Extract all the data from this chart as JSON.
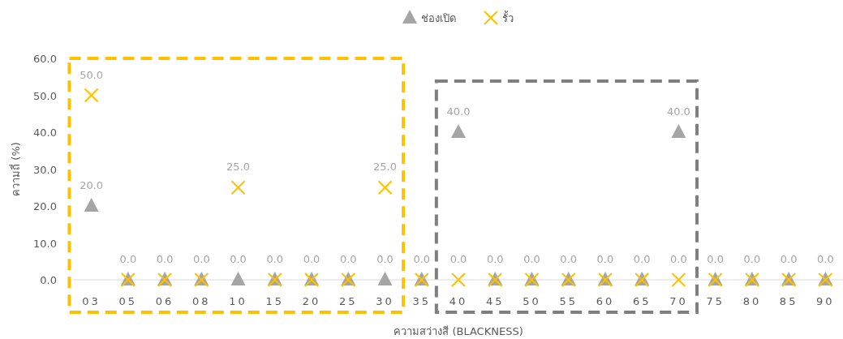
{
  "chart_data": {
    "type": "scatter",
    "xlabel": "ความสว่างสี (BLACKNESS)",
    "ylabel": "ความถี่ (%)",
    "categories": [
      "03",
      "05",
      "06",
      "08",
      "10",
      "15",
      "20",
      "25",
      "30",
      "35",
      "40",
      "45",
      "50",
      "55",
      "60",
      "65",
      "70",
      "75",
      "80",
      "85",
      "90"
    ],
    "series": [
      {
        "name": "ช่องเปิด",
        "color": "#a5a5a5",
        "marker": "triangle",
        "values": [
          20,
          0,
          0,
          0,
          0,
          0,
          0,
          0,
          0,
          0,
          40,
          0,
          0,
          0,
          0,
          0,
          40,
          0,
          0,
          0,
          0
        ],
        "value_labels": [
          "20.0",
          "0.0",
          "0.0",
          "0.0",
          "0.0",
          "0.0",
          "0.0",
          "0.0",
          "0.0",
          "0.0",
          "40.0",
          "0.0",
          "0.0",
          "0.0",
          "0.0",
          "0.0",
          "40.0",
          "0.0",
          "0.0",
          "0.0",
          "0.0"
        ]
      },
      {
        "name": "รั้ว",
        "color": "#ffc000",
        "marker": "cross",
        "values": [
          50,
          0,
          0,
          0,
          25,
          0,
          0,
          0,
          25,
          0,
          0,
          0,
          0,
          0,
          0,
          0,
          0,
          0,
          0,
          0,
          0
        ],
        "value_labels": [
          "50.0",
          null,
          null,
          null,
          "25.0",
          null,
          null,
          null,
          "25.0",
          null,
          "0.0",
          null,
          null,
          null,
          null,
          null,
          "0.0",
          null,
          null,
          null,
          null
        ]
      }
    ],
    "ylim": [
      0,
      60
    ],
    "yticks": [
      {
        "value": 0,
        "label": "0.0"
      },
      {
        "value": 10,
        "label": "10.0"
      },
      {
        "value": 20,
        "label": "20.0"
      },
      {
        "value": 30,
        "label": "30.0"
      },
      {
        "value": 40,
        "label": "40.0"
      },
      {
        "value": 50,
        "label": "50.0"
      },
      {
        "value": 60,
        "label": "60.0"
      }
    ],
    "legend": "top",
    "grid": false
  }
}
